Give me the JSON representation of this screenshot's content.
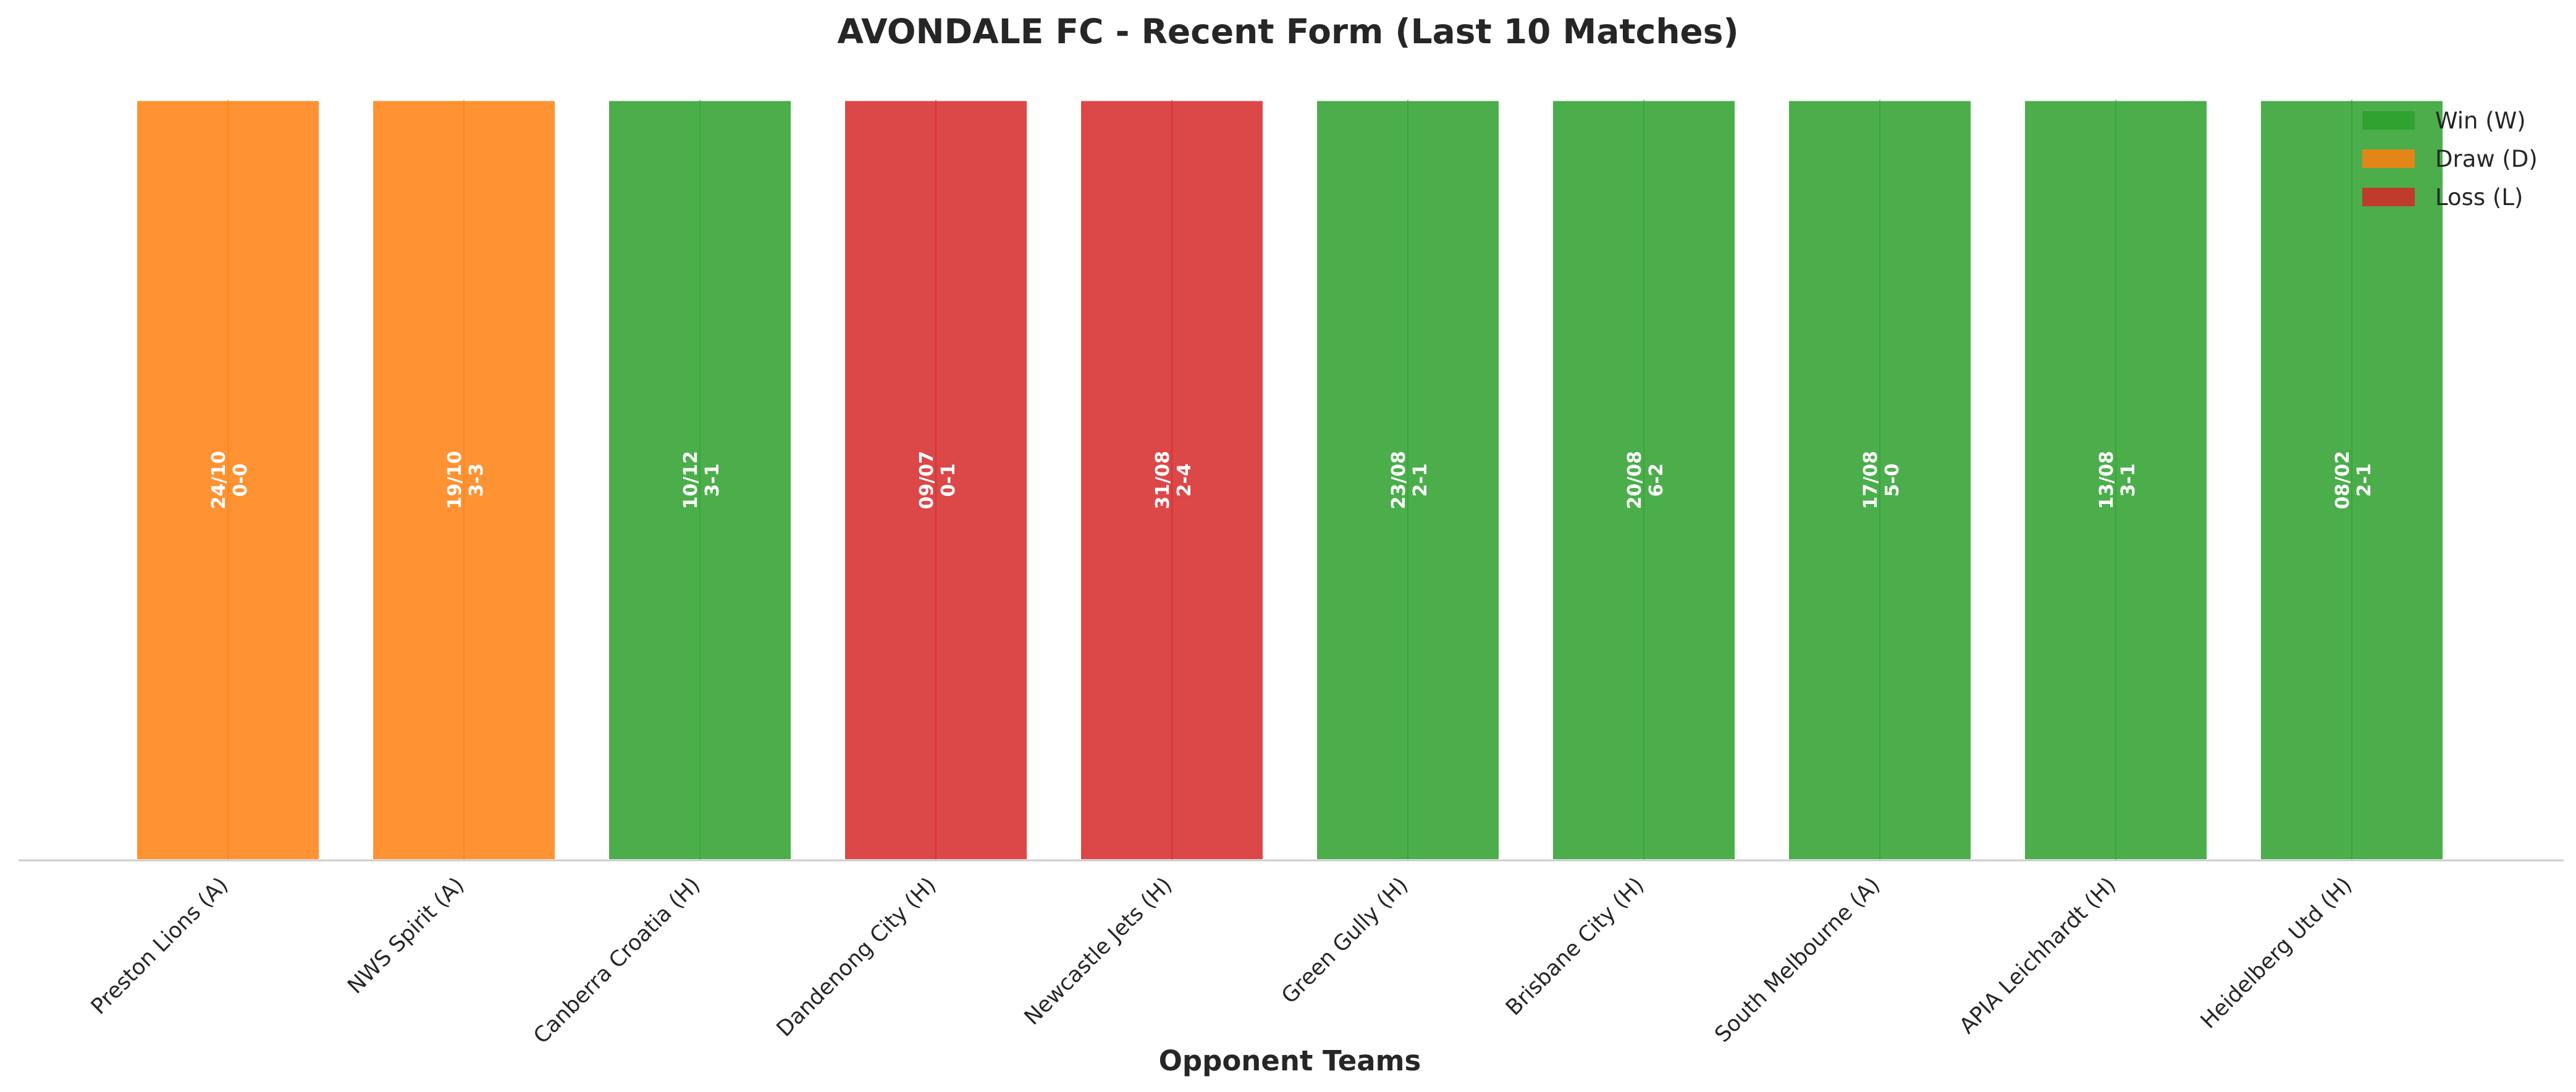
{
  "chart_data": {
    "type": "bar",
    "title": "AVONDALE FC - Recent Form (Last 10 Matches)",
    "xlabel": "Opponent Teams",
    "ylabel": "",
    "categories": [
      "Preston Lions (A)",
      "NWS Spirit (A)",
      "Canberra Croatia (H)",
      "Dandenong City (H)",
      "Newcastle Jets (H)",
      "Green Gully (H)",
      "Brisbane City (H)",
      "South Melbourne (A)",
      "APIA Leichhardt (H)",
      "Heidelberg Utd (H)"
    ],
    "values": [
      1,
      1,
      1,
      1,
      1,
      1,
      1,
      1,
      1,
      1
    ],
    "results": [
      "D",
      "D",
      "W",
      "L",
      "L",
      "W",
      "W",
      "W",
      "W",
      "W"
    ],
    "dates": [
      "24/10",
      "19/10",
      "10/12",
      "09/07",
      "31/08",
      "23/08",
      "20/08",
      "17/08",
      "13/08",
      "08/02"
    ],
    "scores": [
      "0-0",
      "3-3",
      "3-1",
      "0-1",
      "2-4",
      "2-1",
      "6-2",
      "5-0",
      "3-1",
      "2-1"
    ],
    "ylim": [
      0,
      1.05
    ],
    "grid": false,
    "legend_position": "top-right",
    "legend": [
      {
        "key": "W",
        "label": "Win (W)",
        "color": "#2ca02c"
      },
      {
        "key": "D",
        "label": "Draw (D)",
        "color": "#ff7f0e"
      },
      {
        "key": "L",
        "label": "Loss (L)",
        "color": "#d62728"
      }
    ]
  }
}
